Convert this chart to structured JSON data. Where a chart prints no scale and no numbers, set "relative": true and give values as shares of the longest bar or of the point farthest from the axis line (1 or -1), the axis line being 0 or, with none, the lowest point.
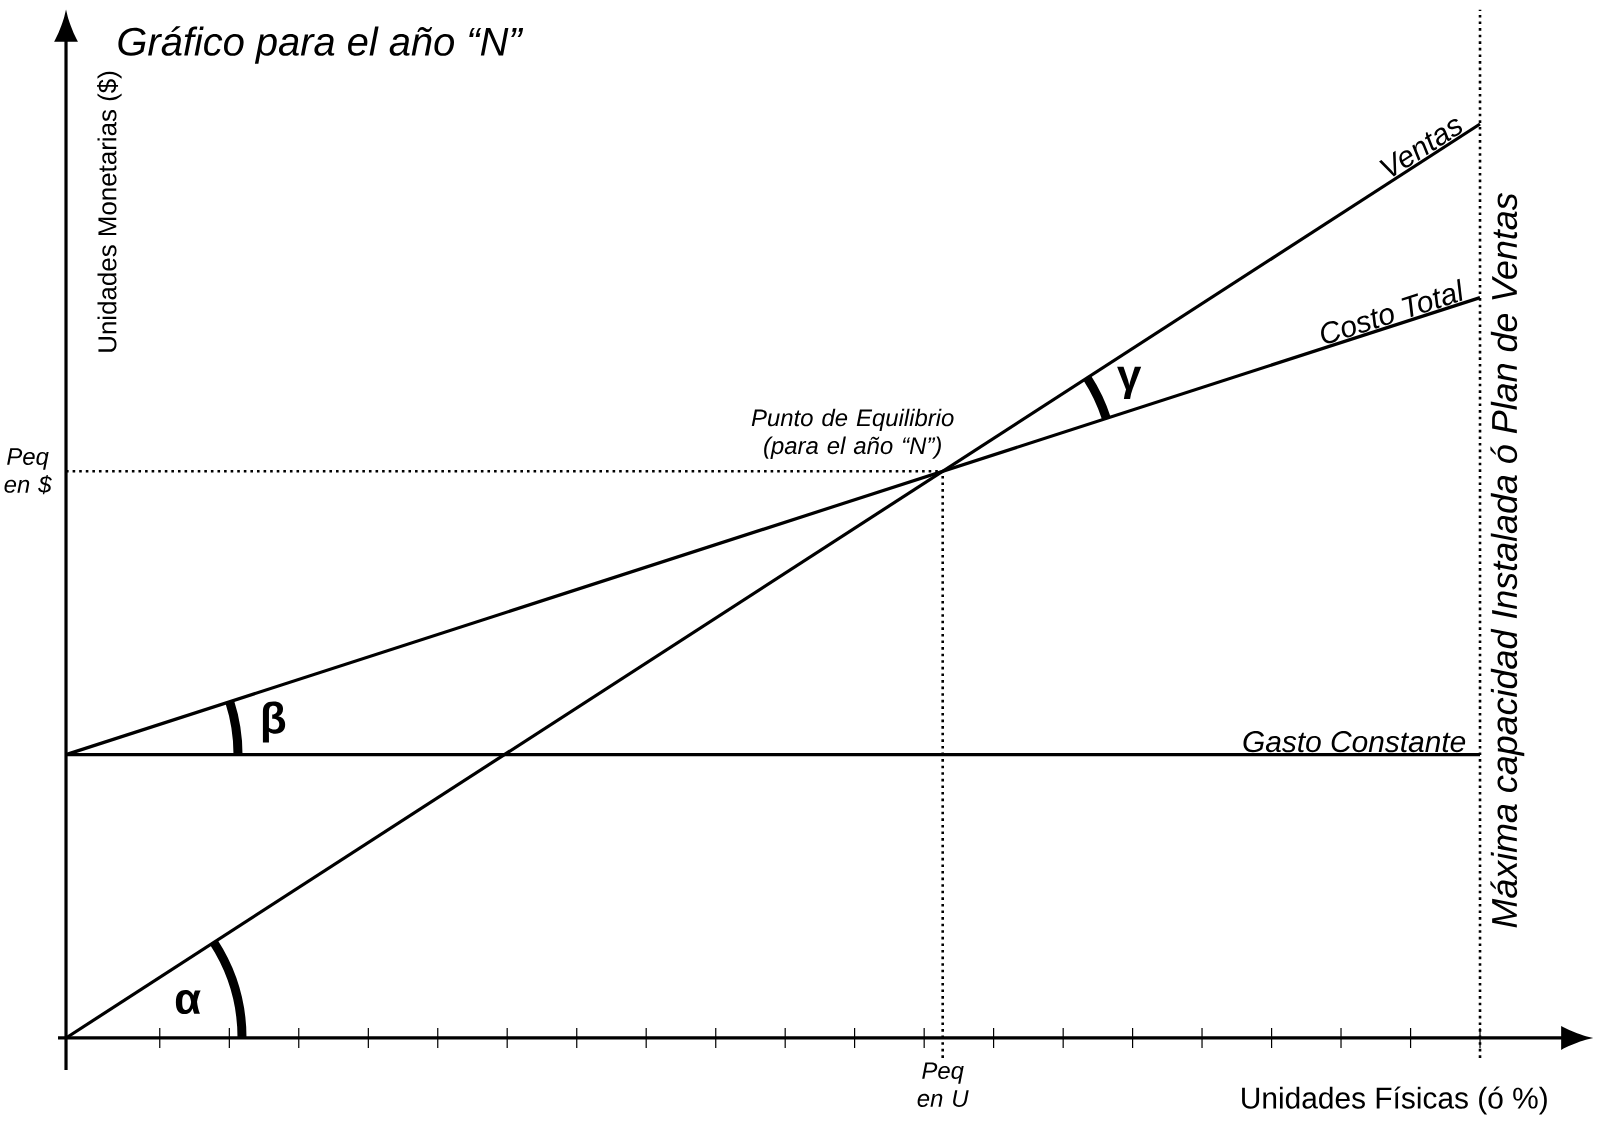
{
  "chart_data": {
    "type": "line",
    "title": "Gráfico para el año “N”",
    "xlabel": "Unidades Físicas (ó %)",
    "ylabel": "Unidades Monetarias ($)",
    "relative": true,
    "categories": [
      null,
      null
    ],
    "series": [
      {
        "name": "Ventas",
        "color": "#000000",
        "values": [
          0,
          1
        ]
      },
      {
        "name": "Costo Total",
        "color": "#000000",
        "values": [
          0.31,
          0.81
        ]
      },
      {
        "name": "Gasto Constante",
        "color": "#000000",
        "values": [
          0.31,
          0.31
        ]
      }
    ],
    "annotations": [
      "Punto de Equilibrio (para el año “N”)",
      "Peq en $",
      "Peq en U",
      "Máxima capacidad Instalada ó Plan de Ventas",
      "α",
      "β",
      "γ"
    ],
    "grid": false,
    "marker": "none",
    "line_style": "solid"
  }
}
